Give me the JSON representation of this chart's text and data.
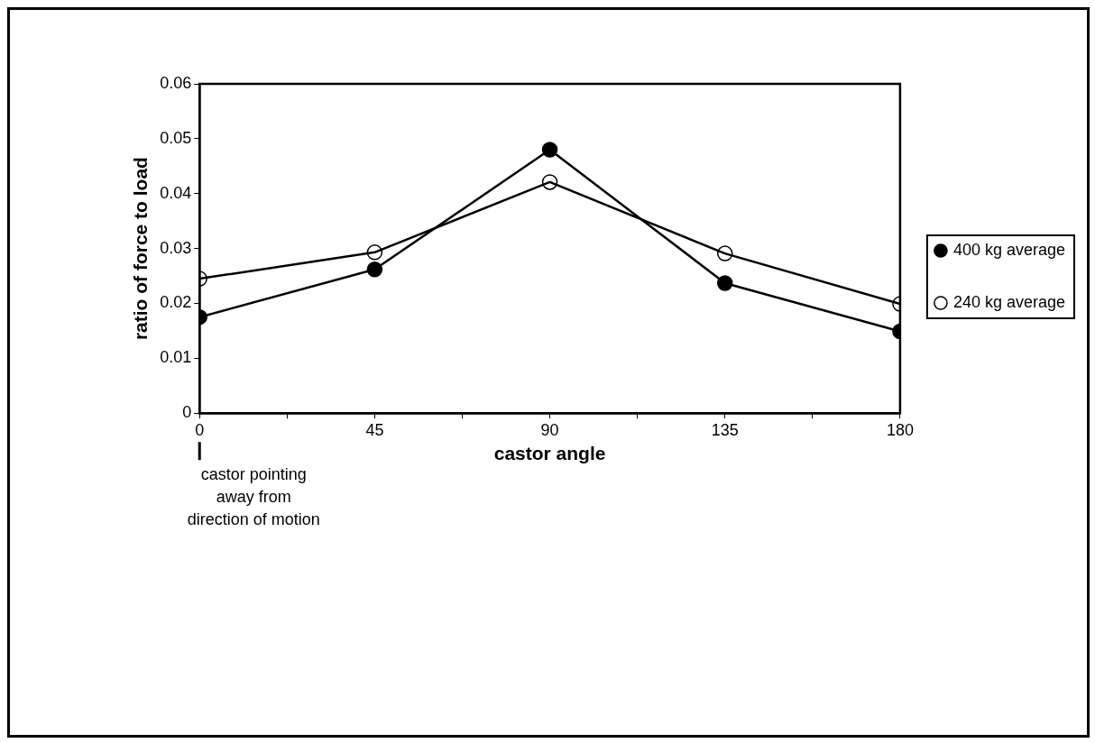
{
  "chart_data": {
    "type": "line",
    "xlabel": "castor angle",
    "ylabel": "ratio of force to load",
    "x": [
      0,
      45,
      90,
      135,
      180
    ],
    "series": [
      {
        "name": "400 kg average",
        "color": "#000000",
        "marker": "circle",
        "values": [
          0.0175,
          0.0262,
          0.048,
          0.0237,
          0.0149
        ]
      },
      {
        "name": "240 kg average",
        "color": "#000000",
        "marker": "circle",
        "values": [
          0.0245,
          0.0293,
          0.0421,
          0.0291,
          0.0199
        ]
      }
    ],
    "xlim": [
      0,
      180
    ],
    "xticks": [
      0,
      {
        "value": 22.5,
        "label": null
      },
      45,
      {
        "value": 67.5,
        "label": null
      },
      90,
      {
        "value": 112.5,
        "label": null
      },
      135,
      {
        "value": 157.5,
        "label": null
      },
      180
    ],
    "ylim": [
      0,
      0.06
    ],
    "yticks": [
      0,
      0.01,
      0.02,
      0.03,
      0.04,
      0.05,
      0.06
    ],
    "grid": false,
    "legend": "right",
    "line_style": "solid",
    "annotations": [
      "castor pointing\naway from\ndirection of motion"
    ]
  }
}
